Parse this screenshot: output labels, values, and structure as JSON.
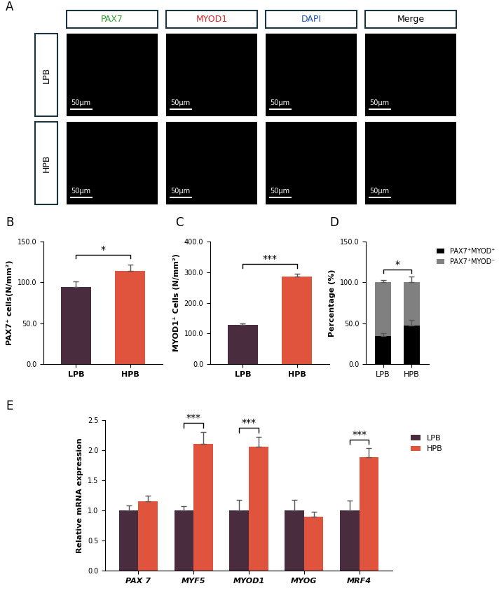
{
  "image_panel": {
    "panel": "A",
    "columns": [
      "PAX7",
      "MYOD1",
      "DAPI",
      "Merge"
    ],
    "column_colors": [
      "#2ca02c",
      "#d62728",
      "#1f4fbf",
      "#000000"
    ],
    "rows": [
      "LPB",
      "HPB"
    ],
    "scale_bar": "50μm"
  },
  "chart_data": [
    {
      "type": "bar",
      "panel": "B",
      "categories": [
        "LPB",
        "HPB"
      ],
      "values": [
        94,
        114
      ],
      "errors": [
        7,
        8
      ],
      "colors": [
        "#4a2c3f",
        "#e0533d"
      ],
      "y_label": "PAX7⁺ cells(N/mm²)",
      "ylim": [
        0,
        150
      ],
      "yticks": [
        {
          "value": 0,
          "label": "0.0"
        },
        {
          "value": 50,
          "label": "50.0"
        },
        {
          "value": 100,
          "label": "100.0"
        },
        {
          "value": 150,
          "label": "150.0"
        }
      ],
      "annotations": [
        {
          "text": "*",
          "between": [
            0,
            1
          ]
        }
      ]
    },
    {
      "type": "bar",
      "panel": "C",
      "categories": [
        "LPB",
        "HPB"
      ],
      "values": [
        127,
        286
      ],
      "errors": [
        5,
        8
      ],
      "colors": [
        "#4a2c3f",
        "#e0533d"
      ],
      "y_label": "MYOD1⁺ Cells (N/mm²)",
      "ylim": [
        0,
        400
      ],
      "yticks": [
        {
          "value": 0,
          "label": "0.0"
        },
        {
          "value": 100,
          "label": "100.0"
        },
        {
          "value": 200,
          "label": "200.0"
        },
        {
          "value": 300,
          "label": "300.0"
        },
        {
          "value": 400,
          "label": "400.0"
        }
      ],
      "annotations": [
        {
          "text": "***",
          "between": [
            0,
            1
          ]
        }
      ]
    },
    {
      "type": "bar",
      "panel": "D",
      "stacked": true,
      "categories": [
        "LPB",
        "HPB"
      ],
      "series": [
        {
          "name": "PAX7⁺MYOD⁺",
          "color": "#000000",
          "values": [
            34,
            47
          ],
          "errors": [
            4,
            7
          ]
        },
        {
          "name": "PAX7⁺MYOD⁻",
          "color": "#808080",
          "values": [
            66,
            53
          ],
          "errors": [
            3,
            7
          ]
        }
      ],
      "y_label": "Percentage (%)",
      "legend": "upper left",
      "ylim": [
        0,
        150
      ],
      "yticks": [
        {
          "value": 0,
          "label": "0.0"
        },
        {
          "value": 50,
          "label": "50.0"
        },
        {
          "value": 100,
          "label": "100.0"
        },
        {
          "value": 150,
          "label": "150.0"
        }
      ],
      "annotations": [
        {
          "text": "*",
          "between": [
            0,
            1
          ]
        }
      ]
    },
    {
      "type": "bar",
      "panel": "E",
      "categories": [
        "PAX 7",
        "MYF5",
        "MYOD1",
        "MYOG",
        "MRF4"
      ],
      "series": [
        {
          "name": "LPB",
          "color": "#4a2c3f",
          "values": [
            1.0,
            1.0,
            1.0,
            1.0,
            1.0
          ],
          "errors": [
            0.08,
            0.07,
            0.17,
            0.17,
            0.16
          ]
        },
        {
          "name": "HPB",
          "color": "#e0533d",
          "values": [
            1.15,
            2.11,
            2.06,
            0.9,
            1.88
          ],
          "errors": [
            0.09,
            0.19,
            0.16,
            0.08,
            0.15
          ]
        }
      ],
      "y_label": "Relative mRNA expression",
      "legend": "upper left",
      "ylim": [
        0,
        2.5
      ],
      "yticks": [
        {
          "value": 0,
          "label": "0.0"
        },
        {
          "value": 0.5,
          "label": "0.5"
        },
        {
          "value": 1.0,
          "label": "1.0"
        },
        {
          "value": 1.5,
          "label": "1.5"
        },
        {
          "value": 2.0,
          "label": "2.0"
        },
        {
          "value": 2.5,
          "label": "2.5"
        }
      ],
      "annotations": [
        {
          "text": "***",
          "category": 1
        },
        {
          "text": "***",
          "category": 2
        },
        {
          "text": "***",
          "category": 4
        }
      ]
    }
  ]
}
